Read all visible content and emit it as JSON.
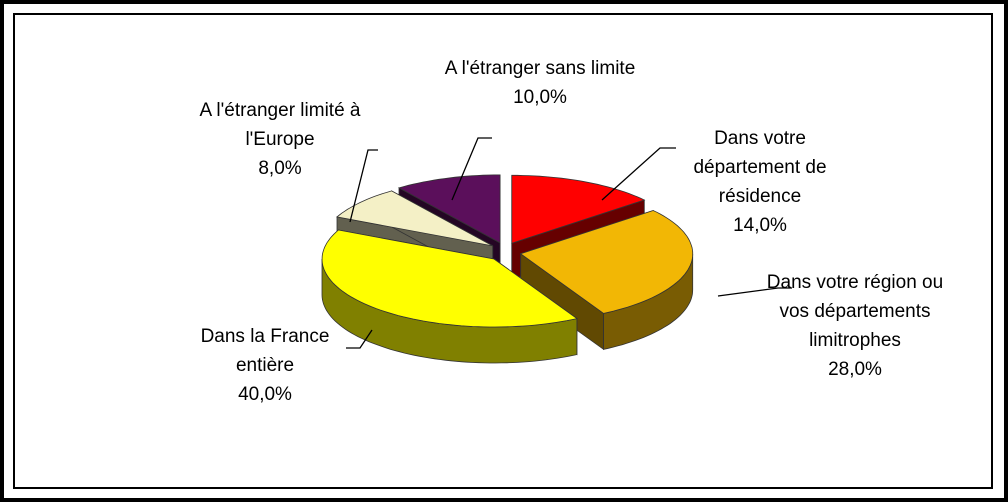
{
  "chart_data": {
    "type": "pie3d",
    "categories": [
      "Dans votre département de résidence",
      "Dans votre région ou vos départements limitrophes",
      "Dans la France entière",
      "A l'étranger limité à l'Europe",
      "A l'étranger sans limite"
    ],
    "values": [
      14,
      28,
      40,
      8,
      10
    ],
    "value_labels": [
      "14,0%",
      "28,0%",
      "40,0%",
      "8,0%",
      "10,0%"
    ],
    "colors": [
      "#ff0000",
      "#f2b705",
      "#ffff00",
      "#f4f0c6",
      "#5b0f5b"
    ]
  }
}
